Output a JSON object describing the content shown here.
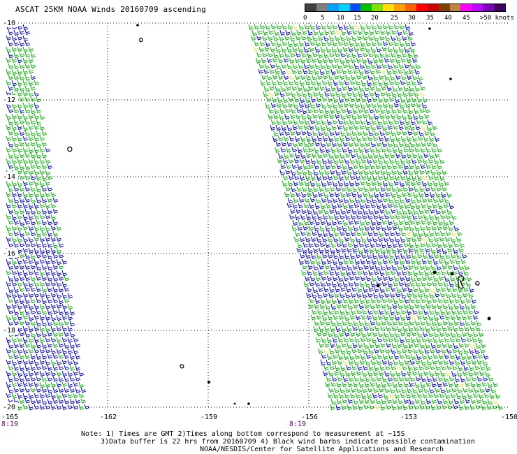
{
  "title": "ASCAT 25KM NOAA Winds 20160709 ascending",
  "legend": {
    "colors": [
      "#404040",
      "#7f7f7f",
      "#00a0ff",
      "#00d0ff",
      "#0050ff",
      "#00c000",
      "#80e000",
      "#ffe000",
      "#ffa000",
      "#ff6000",
      "#ff0000",
      "#d00000",
      "#804000",
      "#c08040",
      "#ff00ff",
      "#c000ff",
      "#8000c0",
      "#400060"
    ],
    "labels": [
      "0",
      "5",
      "10",
      "15",
      "20",
      "25",
      "30",
      "35",
      "40",
      "45",
      ">50 knots"
    ]
  },
  "map": {
    "lat_labels": [
      "-10",
      "-12",
      "-14",
      "-16",
      "-18",
      "-20"
    ],
    "lon_labels": [
      "-165",
      "-162",
      "-159",
      "-156",
      "-153",
      "-150"
    ],
    "time_labels": [
      "8:19",
      "8:19"
    ],
    "barb_colors": {
      "blue": "#0000c0",
      "green": "#00b000",
      "yellow": "#f0e060"
    }
  },
  "notes": {
    "line1": "Note: 1) Times are GMT 2)Times along bottom correspond to measurement at ~15S",
    "line2": "3)Data buffer is 22 hrs from 20160709 4) Black wind barbs indicate possible contamination",
    "line3": "NOAA/NESDIS/Center for Satellite Applications and Research"
  }
}
